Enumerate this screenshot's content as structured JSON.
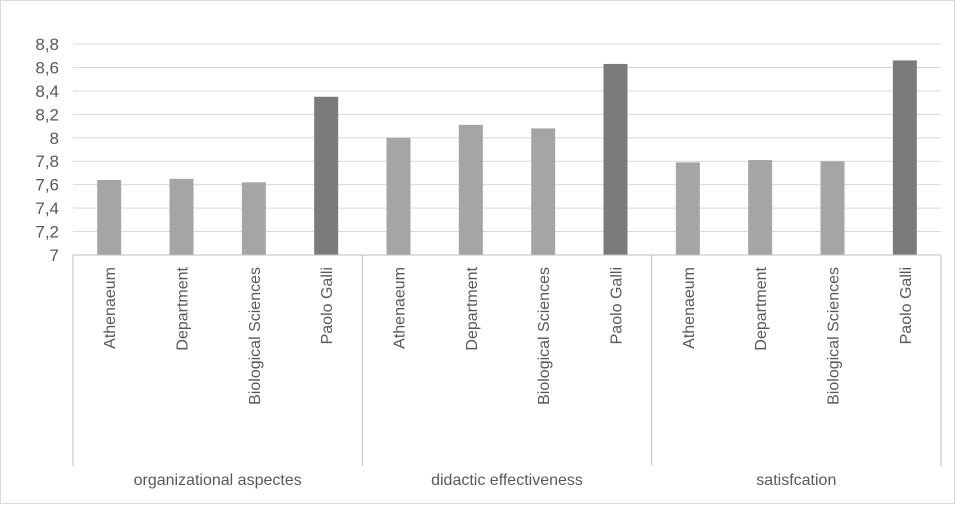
{
  "chart_data": {
    "type": "bar",
    "title": "",
    "xlabel": "",
    "ylabel": "",
    "ylim": [
      7,
      8.8
    ],
    "ytick_step": 0.2,
    "yticks": [
      "7",
      "7,2",
      "7,4",
      "7,6",
      "7,8",
      "8",
      "8,2",
      "8,4",
      "8,6",
      "8,8"
    ],
    "grid": true,
    "legend": "none",
    "colors": {
      "reference": "#a5a5a5",
      "highlight": "#7b7b7b"
    },
    "groups": [
      {
        "label": "organizational aspectes",
        "categories": [
          "Athenaeum",
          "Department",
          "Biological Sciences",
          "Paolo Galli"
        ],
        "values": [
          7.64,
          7.65,
          7.62,
          8.35
        ],
        "highlight": [
          false,
          false,
          false,
          true
        ]
      },
      {
        "label": "didactic effectiveness",
        "categories": [
          "Athenaeum",
          "Department",
          "Biological Sciences",
          "Paolo Galli"
        ],
        "values": [
          8.0,
          8.11,
          8.08,
          8.63
        ],
        "highlight": [
          false,
          false,
          false,
          true
        ]
      },
      {
        "label": "satisfcation",
        "categories": [
          "Athenaeum",
          "Department",
          "Biological Sciences",
          "Paolo Galli"
        ],
        "values": [
          7.79,
          7.81,
          7.8,
          8.66
        ],
        "highlight": [
          false,
          false,
          false,
          true
        ]
      }
    ]
  }
}
